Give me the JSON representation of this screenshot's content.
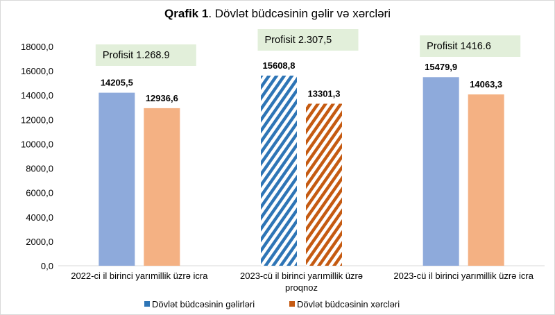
{
  "chart_data": {
    "type": "bar",
    "title_bold": "Qrafik 1",
    "title_rest": ". Dövlət büdcəsinin gəlir və xərcləri",
    "categories": [
      [
        "2022-ci il birinci yarımillik üzrə  icra"
      ],
      [
        "2023-cü il birinci yarımillik üzrə",
        "proqnoz"
      ],
      [
        "2023-cü il birinci yarımillik üzrə icra"
      ]
    ],
    "series": [
      {
        "name": "Dövlət büdcəsinin gəlirləri",
        "values": [
          14205.5,
          15608.8,
          15479.9
        ],
        "labels": [
          "14205,5",
          "15608,8",
          "15479,9"
        ],
        "color": "#8eaadb",
        "hatch_color": "#2e75b6"
      },
      {
        "name": "Dövlət büdcəsinin xərcləri",
        "values": [
          12936.6,
          13301.3,
          14063.3
        ],
        "labels": [
          "12936,6",
          "13301,3",
          "14063,3"
        ],
        "color": "#f4b183",
        "hatch_color": "#c55a11"
      }
    ],
    "hatched_category": 1,
    "annotations": [
      "Profisit 1.268.9",
      "Profisit 2.307,5",
      "Profisit 1416.6"
    ],
    "annotation_color": "#e2efda",
    "ylim": [
      0,
      18000
    ],
    "yticks": [
      "0,0",
      "2000,0",
      "4000,0",
      "6000,0",
      "8000,0",
      "10000,0",
      "12000,0",
      "14000,0",
      "16000,0",
      "18000,0"
    ],
    "grid": false,
    "legend": "bottom"
  }
}
